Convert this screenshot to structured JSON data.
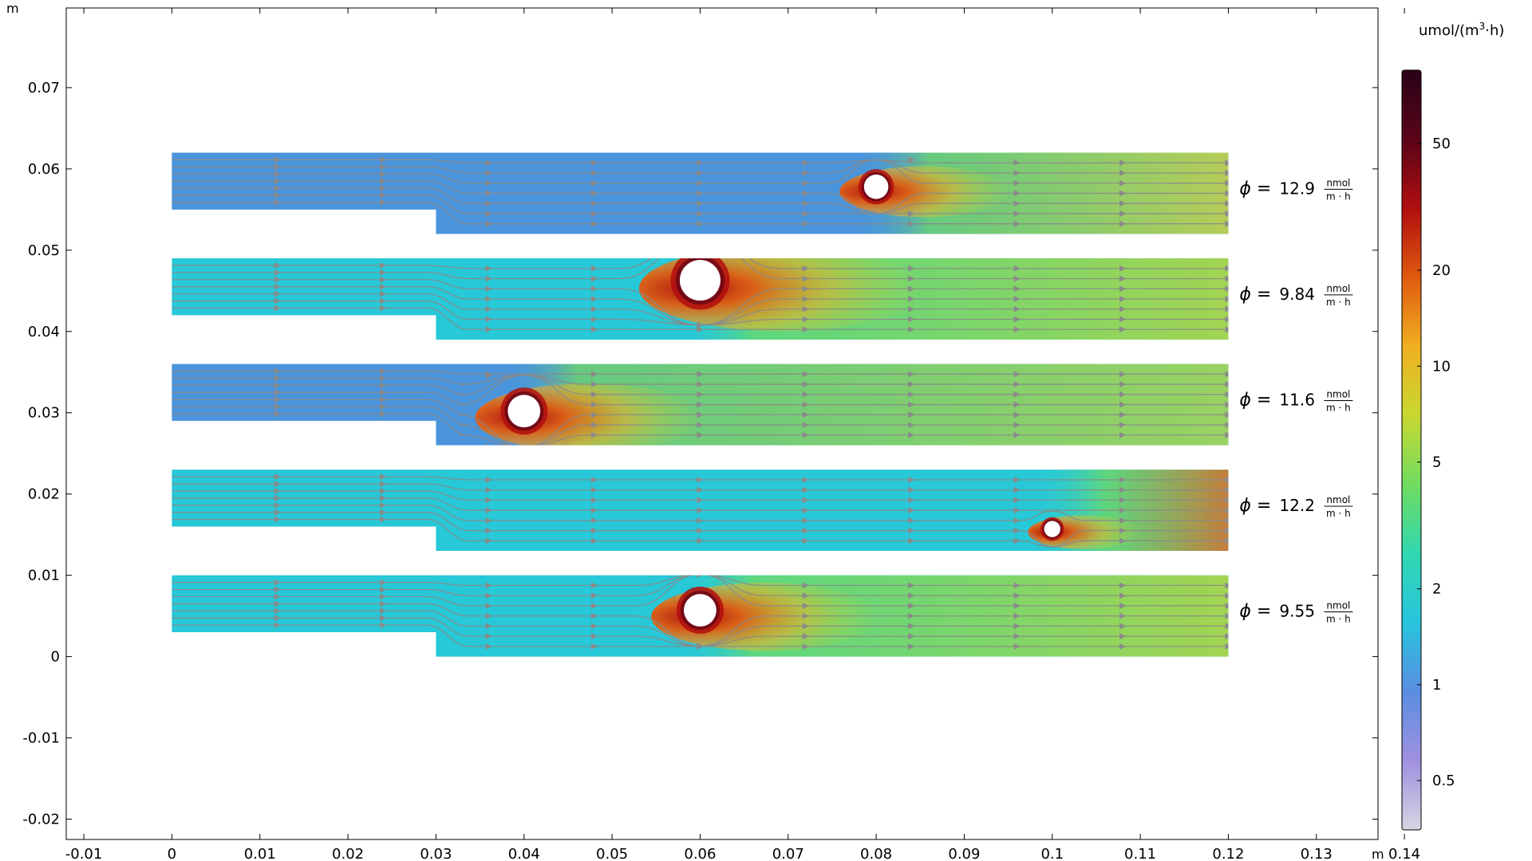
{
  "chart_data": {
    "type": "heatmap",
    "description_free": true,
    "axes": {
      "x_unit_label": "m",
      "y_unit_label": "m",
      "xlim": [
        -0.012,
        0.137
      ],
      "ylim": [
        -0.0225,
        0.0798
      ],
      "x_ticks": [
        "-0.01",
        "0",
        "0.01",
        "0.02",
        "0.03",
        "0.04",
        "0.05",
        "0.06",
        "0.07",
        "0.08",
        "0.09",
        "0.1",
        "0.11",
        "0.12",
        "0.13",
        "0.14"
      ],
      "x_tick_values": [
        -0.01,
        0,
        0.01,
        0.02,
        0.03,
        0.04,
        0.05,
        0.06,
        0.07,
        0.08,
        0.09,
        0.1,
        0.11,
        0.12,
        0.13,
        0.14
      ],
      "y_ticks": [
        "-0.02",
        "-0.01",
        "0",
        "0.01",
        "0.02",
        "0.03",
        "0.04",
        "0.05",
        "0.06",
        "0.07"
      ],
      "y_tick_values": [
        -0.02,
        -0.01,
        0,
        0.01,
        0.02,
        0.03,
        0.04,
        0.05,
        0.06,
        0.07
      ],
      "grid": false
    },
    "colorbar": {
      "unit_label": "umol/(m³·h)",
      "unit_base": "umol/(m",
      "unit_sup": "3",
      "unit_tail": "·h)",
      "scale": "log",
      "range": [
        0.35,
        85
      ],
      "tick_labels": [
        "0.5",
        "1",
        "2",
        "5",
        "10",
        "20",
        "50"
      ],
      "tick_values": [
        0.5,
        1,
        2,
        5,
        10,
        20,
        50
      ]
    },
    "channel_geometry": {
      "x_start": 0,
      "x_step": 0.03,
      "x_end": 0.12,
      "inlet_height": 0.007,
      "outlet_height": 0.01
    },
    "cases": [
      {
        "phi_value": "12.9",
        "phi_unit_num": "nmol",
        "phi_unit_den": "m · h",
        "y_offset": 0.052,
        "cylinder_x": 0.08,
        "cylinder_y": 0.0578,
        "cylinder_r": 0.0015,
        "background": "#4a94dc",
        "wake_color": "#c8d640"
      },
      {
        "phi_value": "9.84",
        "phi_unit_num": "nmol",
        "phi_unit_den": "m · h",
        "y_offset": 0.039,
        "cylinder_x": 0.06,
        "cylinder_y": 0.0463,
        "cylinder_r": 0.0025,
        "background": "#27c8d8",
        "wake_color": "#b8d63a"
      },
      {
        "phi_value": "11.6",
        "phi_unit_num": "nmol",
        "phi_unit_den": "m · h",
        "y_offset": 0.026,
        "cylinder_x": 0.04,
        "cylinder_y": 0.0302,
        "cylinder_r": 0.002,
        "background": "#4a94dc",
        "wake_color": "#a6dd4c"
      },
      {
        "phi_value": "12.2",
        "phi_unit_num": "nmol",
        "phi_unit_den": "m · h",
        "y_offset": 0.013,
        "cylinder_x": 0.1,
        "cylinder_y": 0.0157,
        "cylinder_r": 0.001,
        "background": "#27c8d8",
        "wake_color": "#e07020"
      },
      {
        "phi_value": "9.55",
        "phi_unit_num": "nmol",
        "phi_unit_den": "m · h",
        "y_offset": 0.0,
        "cylinder_x": 0.06,
        "cylinder_y": 0.0057,
        "cylinder_r": 0.002,
        "background": "#27c8d8",
        "wake_color": "#b8d63a"
      }
    ],
    "phi_symbol": "ϕ =",
    "colormap": [
      "#d8d6e2",
      "#a090e0",
      "#5a8ee0",
      "#28c4de",
      "#30d8b0",
      "#70dc60",
      "#c8d830",
      "#f0b020",
      "#e05a10",
      "#b00e0e",
      "#5a0418",
      "#2a0218"
    ]
  }
}
